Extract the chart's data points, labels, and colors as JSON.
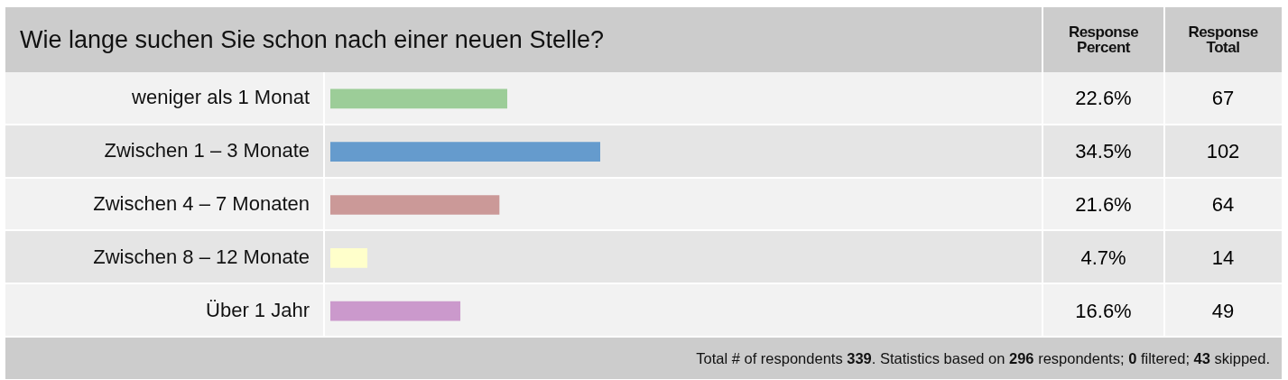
{
  "chart_data": {
    "type": "bar",
    "orientation": "horizontal",
    "title": "Wie lange suchen Sie schon nach einer neuen Stelle?",
    "categories": [
      "weniger als 1 Monat",
      "Zwischen 1 – 3 Monate",
      "Zwischen 4 – 7 Monaten",
      "Zwischen 8 – 12 Monate",
      "Über 1 Jahr"
    ],
    "values": [
      22.6,
      34.5,
      21.6,
      4.7,
      16.6
    ],
    "colors": [
      "#9ccd98",
      "#659bcd",
      "#cb9998",
      "#ffffcb",
      "#cb99cc"
    ],
    "value_labels": [
      "22.6%",
      "34.5%",
      "21.6%",
      "4.7%",
      "16.6%"
    ],
    "tick_labels": "y",
    "annotations": [
      "Response Percent",
      "Response Total",
      "Total # of respondents 339. Statistics based on 296 respondents; 0 filtered; 43 skipped.",
      "67",
      "102",
      "64",
      "14",
      "49"
    ]
  }
}
